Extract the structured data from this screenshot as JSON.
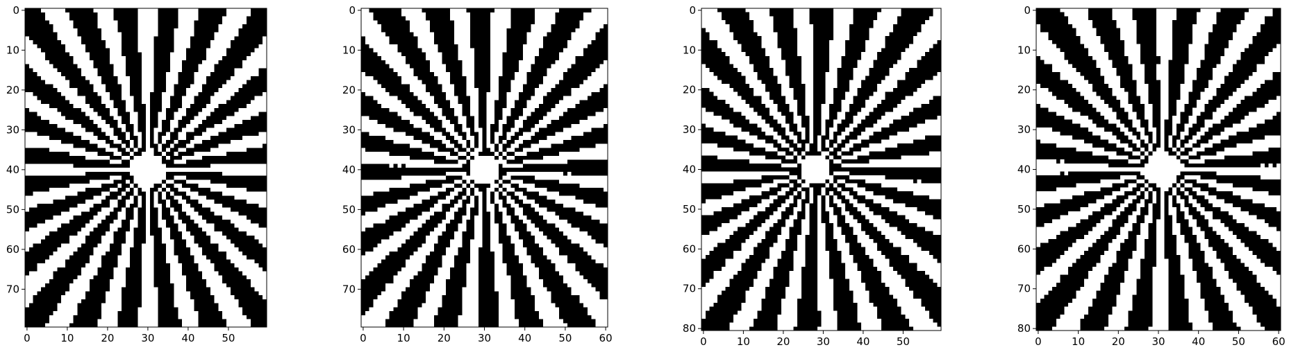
{
  "chart_data": [
    {
      "type": "heatmap",
      "title": "",
      "xlabel": "",
      "ylabel": "",
      "colormap": "gray",
      "n_rows": 80,
      "n_cols": 60,
      "center": [
        30,
        40
      ],
      "n_rays": 24,
      "angle_offset": 0.07,
      "xticks": [
        0,
        10,
        20,
        30,
        40,
        50
      ],
      "yticks": [
        0,
        10,
        20,
        30,
        40,
        50,
        60,
        70
      ],
      "xlim": [
        -0.5,
        59.5
      ],
      "ylim": [
        79.5,
        -0.5
      ]
    },
    {
      "type": "heatmap",
      "title": "",
      "xlabel": "",
      "ylabel": "",
      "colormap": "gray",
      "n_rows": 80,
      "n_cols": 61,
      "center": [
        30,
        40
      ],
      "n_rays": 24,
      "angle_offset": 0.22,
      "xticks": [
        0,
        10,
        20,
        30,
        40,
        50,
        60
      ],
      "yticks": [
        0,
        10,
        20,
        30,
        40,
        50,
        60,
        70
      ],
      "xlim": [
        -0.5,
        60.5
      ],
      "ylim": [
        79.5,
        -0.5
      ]
    },
    {
      "type": "heatmap",
      "title": "",
      "xlabel": "",
      "ylabel": "",
      "colormap": "gray",
      "n_rows": 81,
      "n_cols": 60,
      "center": [
        28,
        40
      ],
      "n_rays": 24,
      "angle_offset": 0.41,
      "xticks": [
        0,
        10,
        20,
        30,
        40,
        50
      ],
      "yticks": [
        0,
        10,
        20,
        30,
        40,
        50,
        60,
        70,
        80
      ],
      "xlim": [
        -0.5,
        59.5
      ],
      "ylim": [
        80.5,
        -0.5
      ]
    },
    {
      "type": "heatmap",
      "title": "",
      "xlabel": "",
      "ylabel": "",
      "colormap": "gray",
      "n_rows": 81,
      "n_cols": 61,
      "center": [
        31,
        40
      ],
      "n_rays": 24,
      "angle_offset": 0.57,
      "xticks": [
        0,
        10,
        20,
        30,
        40,
        50,
        60
      ],
      "yticks": [
        0,
        10,
        20,
        30,
        40,
        50,
        60,
        70,
        80
      ],
      "xlim": [
        -0.5,
        60.5
      ],
      "ylim": [
        80.5,
        -0.5
      ]
    }
  ],
  "colors": {
    "on": "#ffffff",
    "off": "#000000",
    "background": "#ffffff",
    "axis": "#000000"
  }
}
